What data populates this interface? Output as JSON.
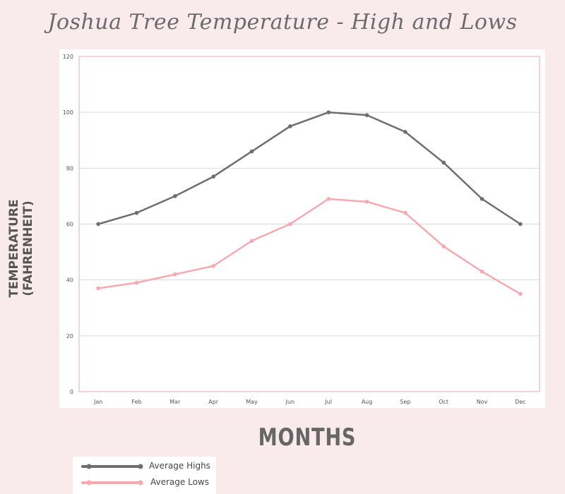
{
  "chart_data": {
    "type": "line",
    "title": "Joshua Tree Temperature - High and Lows",
    "xlabel": "MONTHS",
    "ylabel_line1": "TEMPERATURE",
    "ylabel_line2": "(FAHRENHEIT)",
    "categories": [
      "Jan",
      "Feb",
      "Mar",
      "Apr",
      "May",
      "Jun",
      "Jul",
      "Aug",
      "Sep",
      "Oct",
      "Nov",
      "Dec"
    ],
    "ylim": [
      0,
      120
    ],
    "yticks": [
      "0",
      "20",
      "40",
      "60",
      "80",
      "100",
      "120"
    ],
    "grid": true,
    "legend_position": "bottom-left",
    "series": [
      {
        "name": "Average Highs",
        "color": "#6e6e6e",
        "values": [
          60,
          64,
          70,
          77,
          86,
          95,
          100,
          99,
          93,
          82,
          69,
          60
        ]
      },
      {
        "name": "Average Lows",
        "color": "#f7a9b0",
        "values": [
          37,
          39,
          42,
          45,
          54,
          60,
          69,
          68,
          64,
          52,
          43,
          35
        ]
      }
    ]
  },
  "colors": {
    "background": "#f9ebec",
    "plot_border": "#f6c4c9",
    "gridline": "#d9d9d9"
  }
}
